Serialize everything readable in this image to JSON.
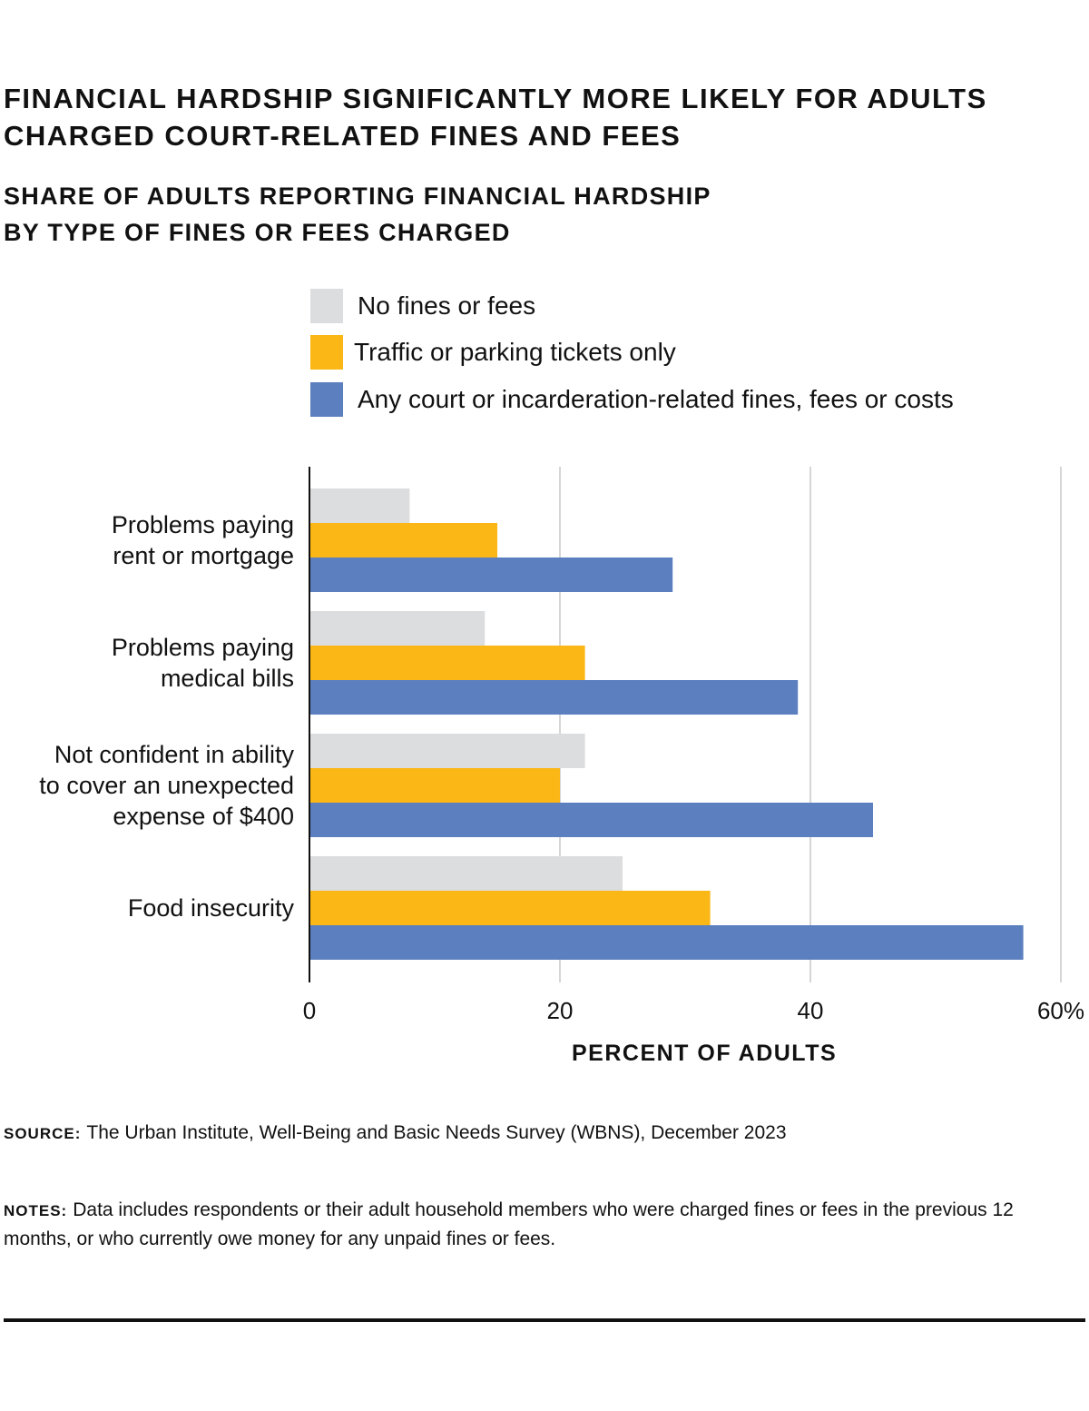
{
  "title": "FINANCIAL HARDSHIP SIGNIFICANTLY MORE LIKELY FOR ADULTS CHARGED COURT-RELATED FINES AND FEES",
  "subtitle_line1": "SHARE OF ADULTS REPORTING FINANCIAL HARDSHIP",
  "subtitle_line2": "BY TYPE OF FINES OR FEES CHARGED",
  "source_label": "SOURCE:",
  "source_text": "The Urban Institute, Well-Being and Basic Needs Survey (WBNS), December 2023",
  "notes_label": "NOTES:",
  "notes_text": "Data includes respondents or their adult household members who were charged fines or fees in the previous 12 months, or who currently owe money for any unpaid fines or fees.",
  "chart_data": {
    "type": "bar",
    "orientation": "horizontal",
    "categories": [
      [
        "Problems paying",
        "rent or mortgage"
      ],
      [
        "Problems paying",
        "medical bills"
      ],
      [
        "Not confident in ability",
        "to cover an unexpected",
        "expense of $400"
      ],
      [
        "Food insecurity"
      ]
    ],
    "series": [
      {
        "name": "No fines or fees",
        "color": "#dcdddf",
        "values": [
          8,
          14,
          22,
          25
        ]
      },
      {
        "name": "Traffic or parking tickets only",
        "color": "#fbb715",
        "values": [
          15,
          22,
          20,
          32
        ]
      },
      {
        "name": "Any court or incarderation-related fines, fees or costs",
        "color": "#5b7fbf",
        "values": [
          29,
          39,
          45,
          57
        ]
      }
    ],
    "xlim": [
      0,
      60
    ],
    "xticks": [
      "0",
      "20",
      "40",
      "60%"
    ],
    "xtick_values": [
      0,
      20,
      40,
      60
    ],
    "xlabel": "PERCENT OF ADULTS",
    "grid": true,
    "legend_position": "top"
  }
}
